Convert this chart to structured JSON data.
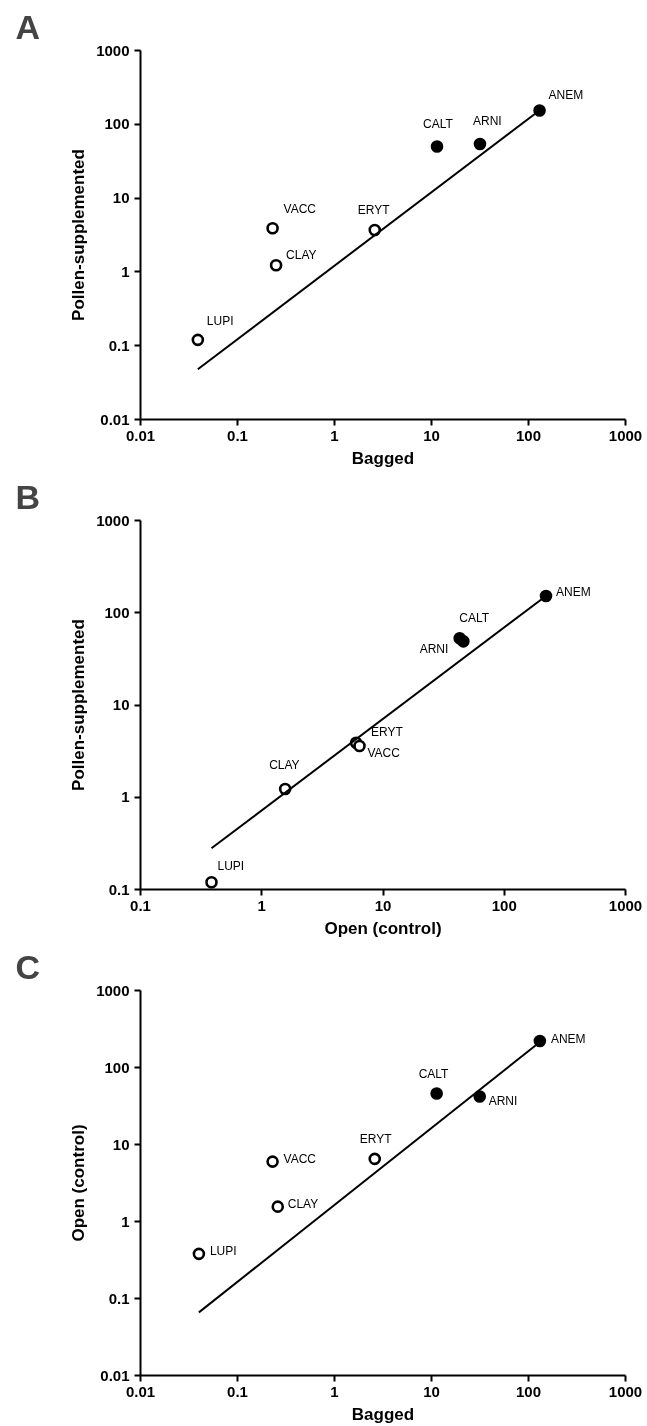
{
  "chart_data": [
    {
      "type": "scatter",
      "title": "A",
      "xlabel": "Bagged",
      "ylabel": "Pollen-supplemented",
      "log": "xy",
      "grid": false,
      "marker": "circle",
      "xlim": [
        0.01,
        1000
      ],
      "ylim": [
        0.01,
        1000
      ],
      "xticks": [
        0.01,
        0.1,
        1,
        10,
        100,
        1000
      ],
      "yticks": [
        0.01,
        0.1,
        1,
        10,
        100,
        1000
      ],
      "series": [
        {
          "color": "#ffffff",
          "x": [
            0.039,
            0.23,
            0.25,
            2.6
          ],
          "values": [
            0.12,
            3.9,
            1.23,
            3.7
          ]
        },
        {
          "color": "#000000",
          "x": [
            11.4,
            31.6,
            130
          ],
          "values": [
            50,
            54,
            154
          ]
        },
        {
          "type": "line",
          "marker": "none",
          "color": "#000000",
          "x": [
            0.039,
            117
          ],
          "values": [
            0.048,
            139
          ]
        }
      ],
      "annotations": [
        {
          "text": "LUPI",
          "x": 0.039,
          "y": 0.12
        },
        {
          "text": "VACC",
          "x": 0.23,
          "y": 3.9
        },
        {
          "text": "CLAY",
          "x": 0.25,
          "y": 1.23
        },
        {
          "text": "ERYT",
          "x": 2.6,
          "y": 3.7
        },
        {
          "text": "CALT",
          "x": 11.4,
          "y": 50
        },
        {
          "text": "ARNI",
          "x": 31.6,
          "y": 54
        },
        {
          "text": "ANEM",
          "x": 130,
          "y": 154
        }
      ]
    },
    {
      "type": "scatter",
      "title": "B",
      "xlabel": "Open (control)",
      "ylabel": "Pollen-supplemented",
      "log": "xy",
      "grid": false,
      "marker": "circle",
      "xlim": [
        0.1,
        1000
      ],
      "ylim": [
        0.1,
        1000
      ],
      "xticks": [
        0.1,
        1,
        10,
        100,
        1000
      ],
      "yticks": [
        0.1,
        1,
        10,
        100,
        1000
      ],
      "series": [
        {
          "color": "#ffffff",
          "x": [
            0.385,
            1.56,
            6.0,
            6.4
          ],
          "values": [
            0.12,
            1.23,
            3.9,
            3.6
          ]
        },
        {
          "color": "#000000",
          "x": [
            42.9,
            46,
            221
          ],
          "values": [
            53,
            49,
            152
          ]
        },
        {
          "type": "line",
          "marker": "none",
          "color": "#000000",
          "x": [
            0.385,
            206
          ],
          "values": [
            0.28,
            142
          ]
        }
      ],
      "annotations": [
        {
          "text": "LUPI",
          "x": 0.385,
          "y": 0.12
        },
        {
          "text": "CLAY",
          "x": 1.56,
          "y": 1.23
        },
        {
          "text": "ERYT",
          "x": 6.0,
          "y": 3.9
        },
        {
          "text": "VACC",
          "x": 6.4,
          "y": 3.6
        },
        {
          "text": "ARNI",
          "x": 42.9,
          "y": 53
        },
        {
          "text": "CALT",
          "x": 46,
          "y": 49
        },
        {
          "text": "ANEM",
          "x": 221,
          "y": 152
        }
      ]
    },
    {
      "type": "scatter",
      "title": "C",
      "xlabel": "Bagged",
      "ylabel": "Open (control)",
      "log": "xy",
      "grid": false,
      "marker": "circle",
      "xlim": [
        0.01,
        1000
      ],
      "ylim": [
        0.01,
        1000
      ],
      "xticks": [
        0.01,
        0.1,
        1,
        10,
        100,
        1000
      ],
      "yticks": [
        0.01,
        0.1,
        1,
        10,
        100,
        1000
      ],
      "series": [
        {
          "color": "#ffffff",
          "x": [
            0.04,
            0.23,
            0.26,
            2.6
          ],
          "values": [
            0.38,
            6.0,
            1.56,
            6.5
          ]
        },
        {
          "color": "#000000",
          "x": [
            11.3,
            31.4,
            131
          ],
          "values": [
            46,
            42,
            221
          ]
        },
        {
          "type": "line",
          "marker": "none",
          "color": "#000000",
          "x": [
            0.04,
            119
          ],
          "values": [
            0.066,
            195
          ]
        }
      ],
      "annotations": [
        {
          "text": "LUPI",
          "x": 0.04,
          "y": 0.38
        },
        {
          "text": "VACC",
          "x": 0.23,
          "y": 6.0
        },
        {
          "text": "CLAY",
          "x": 0.26,
          "y": 1.56
        },
        {
          "text": "ERYT",
          "x": 2.6,
          "y": 6.5
        },
        {
          "text": "CALT",
          "x": 11.3,
          "y": 46
        },
        {
          "text": "ARNI",
          "x": 31.4,
          "y": 42
        },
        {
          "text": "ANEM",
          "x": 131,
          "y": 221
        }
      ]
    }
  ]
}
